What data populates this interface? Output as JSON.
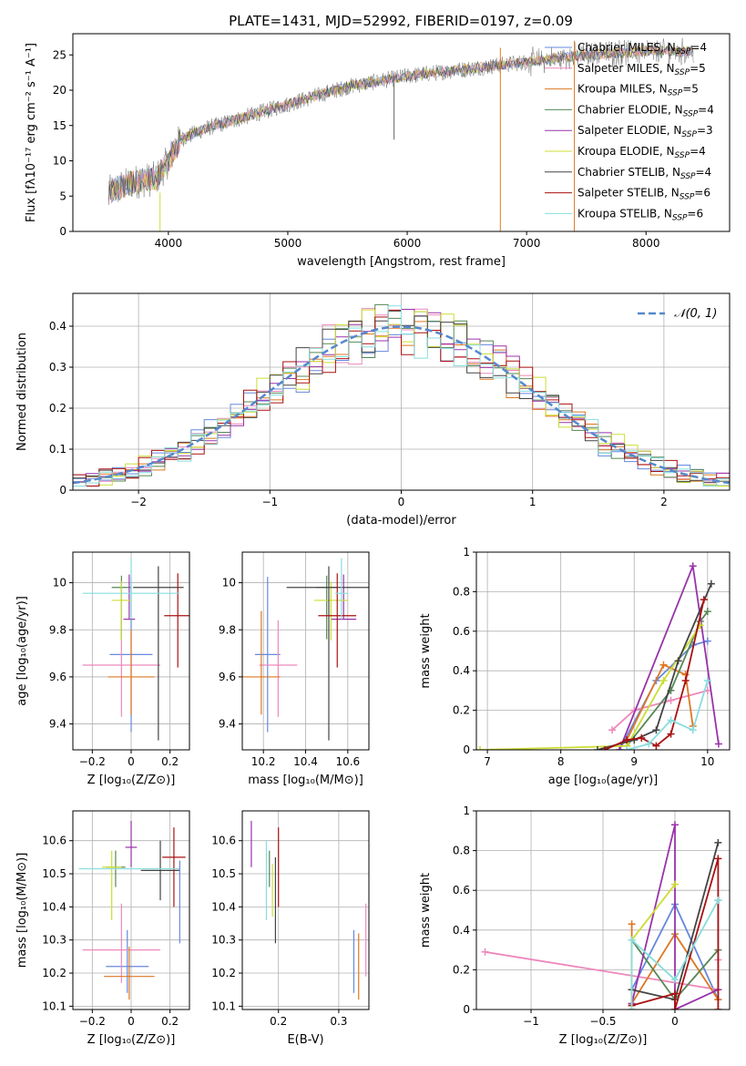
{
  "figure_title": "PLATE=1431, MJD=52992, FIBERID=0197, z=0.09",
  "legend": [
    {
      "label": "Chabrier MILES, N",
      "sub": "SSP",
      "suffix": "=4",
      "color": "#6688dd"
    },
    {
      "label": "Salpeter MILES, N",
      "sub": "SSP",
      "suffix": "=5",
      "color": "#ee88bb"
    },
    {
      "label": "Kroupa MILES, N",
      "sub": "SSP",
      "suffix": "=5",
      "color": "#dd7722"
    },
    {
      "label": "Chabrier ELODIE, N",
      "sub": "SSP",
      "suffix": "=4",
      "color": "#558855"
    },
    {
      "label": "Salpeter ELODIE, N",
      "sub": "SSP",
      "suffix": "=3",
      "color": "#9933aa"
    },
    {
      "label": "Kroupa ELODIE, N",
      "sub": "SSP",
      "suffix": "=4",
      "color": "#ccdd33"
    },
    {
      "label": "Chabrier STELIB, N",
      "sub": "SSP",
      "suffix": "=4",
      "color": "#444444"
    },
    {
      "label": "Salpeter STELIB, N",
      "sub": "SSP",
      "suffix": "=6",
      "color": "#aa1111"
    },
    {
      "label": "Kroupa STELIB, N",
      "sub": "SSP",
      "suffix": "=6",
      "color": "#88dddd"
    }
  ],
  "chart_data": [
    {
      "type": "line",
      "id": "spectrum",
      "xlabel": "wavelength [Angstrom, rest frame]",
      "ylabel": "Flux [fλ10⁻¹⁷ erg cm⁻² s⁻¹ A⁻¹]",
      "xlim": [
        3200,
        8700
      ],
      "ylim": [
        0,
        28
      ],
      "xticks": [
        4000,
        5000,
        6000,
        7000,
        8000
      ],
      "yticks": [
        0,
        5,
        10,
        15,
        20,
        25
      ],
      "continuum": [
        [
          3500,
          5.5
        ],
        [
          3700,
          7
        ],
        [
          3900,
          7.5
        ],
        [
          4000,
          10
        ],
        [
          4100,
          13
        ],
        [
          4300,
          14.5
        ],
        [
          4600,
          16
        ],
        [
          5000,
          18
        ],
        [
          5500,
          20.5
        ],
        [
          6000,
          22
        ],
        [
          6500,
          23
        ],
        [
          7000,
          24
        ],
        [
          7500,
          25
        ],
        [
          8000,
          25.5
        ],
        [
          8400,
          25.5
        ]
      ],
      "spikes": [
        {
          "x": 3930,
          "y0": 0,
          "y1": 5.5
        },
        {
          "x": 6780,
          "y0": 0,
          "y1": 26
        },
        {
          "x": 7400,
          "y0": 0,
          "y1": 27
        }
      ]
    },
    {
      "type": "histogram",
      "id": "residuals",
      "xlabel": "(data-model)/error",
      "ylabel": "Normed distribution",
      "xlim": [
        -2.5,
        2.5
      ],
      "ylim": [
        0,
        0.48
      ],
      "xticks": [
        -2,
        -1,
        0,
        1,
        2
      ],
      "yticks": [
        0.0,
        0.1,
        0.2,
        0.3,
        0.4
      ],
      "bin_width": 0.1,
      "bin_start": -2.5,
      "gaussian_label": "𝒩(0, 1)",
      "gaussian_mean": 0,
      "gaussian_sigma": 1
    },
    {
      "type": "scatter",
      "id": "age-vs-Z",
      "xlabel": "Z [log₁₀(Z/Z⊙)]",
      "ylabel": "age  [log₁₀(age/yr)]",
      "xlim": [
        -0.3,
        0.3
      ],
      "ylim": [
        9.29,
        10.13
      ],
      "xticks": [
        -0.2,
        0.0,
        0.2
      ],
      "yticks": [
        9.4,
        9.6,
        9.8,
        10.0
      ],
      "points": [
        {
          "x": 0.0,
          "y": 9.695,
          "xerr": 0.11,
          "yerr": [
            0.33,
            0.33
          ]
        },
        {
          "x": -0.05,
          "y": 9.65,
          "xerr": 0.2,
          "yerr": [
            0.22,
            0.19
          ]
        },
        {
          "x": 0.0,
          "y": 9.6,
          "xerr": 0.12,
          "yerr": [
            0.16,
            0.2
          ]
        },
        {
          "x": -0.05,
          "y": 9.98,
          "xerr": 0.05,
          "yerr": [
            0.22,
            0.05
          ]
        },
        {
          "x": -0.01,
          "y": 9.845,
          "xerr": 0.03,
          "yerr": [
            0.0,
            0.19
          ]
        },
        {
          "x": -0.05,
          "y": 9.925,
          "xerr": 0.05,
          "yerr": [
            0.17,
            0.08
          ]
        },
        {
          "x": 0.14,
          "y": 9.98,
          "xerr": 0.13,
          "yerr": [
            0.65,
            0.09
          ]
        },
        {
          "x": 0.24,
          "y": 9.86,
          "xerr": 0.07,
          "yerr": [
            0.22,
            0.18
          ]
        },
        {
          "x": 0.0,
          "y": 9.955,
          "xerr": 0.25,
          "yerr": [
            0.11,
            0.15
          ]
        }
      ]
    },
    {
      "type": "scatter",
      "id": "age-vs-mass",
      "xlabel": "mass [log₁₀(M/M⊙)]",
      "ylabel": "",
      "xlim": [
        10.1,
        10.7
      ],
      "ylim": [
        9.29,
        10.13
      ],
      "xticks": [
        10.2,
        10.4,
        10.6
      ],
      "yticks": [
        9.4,
        9.6,
        9.8,
        10.0
      ],
      "points": [
        {
          "x": 10.22,
          "y": 9.695,
          "xerr": 0.06,
          "yerr": [
            0.33,
            0.33
          ]
        },
        {
          "x": 10.27,
          "y": 9.65,
          "xerr": 0.09,
          "yerr": [
            0.22,
            0.19
          ]
        },
        {
          "x": 10.19,
          "y": 9.6,
          "xerr": 0.09,
          "yerr": [
            0.16,
            0.28
          ]
        },
        {
          "x": 10.5,
          "y": 9.98,
          "xerr": 0.05,
          "yerr": [
            0.22,
            0.05
          ]
        },
        {
          "x": 10.58,
          "y": 9.845,
          "xerr": 0.06,
          "yerr": [
            0.0,
            0.19
          ]
        },
        {
          "x": 10.52,
          "y": 9.925,
          "xerr": 0.08,
          "yerr": [
            0.17,
            0.08
          ]
        },
        {
          "x": 10.51,
          "y": 9.98,
          "xerr": 0.2,
          "yerr": [
            0.65,
            0.09
          ]
        },
        {
          "x": 10.55,
          "y": 9.86,
          "xerr": 0.09,
          "yerr": [
            0.22,
            0.18
          ]
        },
        {
          "x": 10.57,
          "y": 9.955,
          "xerr": 0.03,
          "yerr": [
            0.11,
            0.15
          ]
        }
      ]
    },
    {
      "type": "line",
      "id": "mass-weight-vs-age",
      "xlabel": "age  [log₁₀(age/yr)]",
      "ylabel": "mass weight",
      "xlim": [
        6.85,
        10.3
      ],
      "ylim": [
        0,
        1
      ],
      "xticks": [
        7,
        8,
        9,
        10
      ],
      "yticks": [
        0.0,
        0.2,
        0.4,
        0.6,
        0.8,
        1.0
      ],
      "series": [
        {
          "x": [
            8.8,
            9.3,
            9.8,
            10.0
          ],
          "y": [
            0.0,
            0.35,
            0.53,
            0.55
          ]
        },
        {
          "x": [
            8.7,
            9.0,
            9.5,
            10.0
          ],
          "y": [
            0.1,
            0.2,
            0.25,
            0.3
          ]
        },
        {
          "x": [
            8.9,
            9.4,
            9.7,
            9.8
          ],
          "y": [
            0.05,
            0.43,
            0.38,
            0.12
          ]
        },
        {
          "x": [
            8.9,
            9.5,
            9.9,
            10.0
          ],
          "y": [
            0.02,
            0.3,
            0.65,
            0.7
          ]
        },
        {
          "x": [
            8.8,
            9.8,
            10.15
          ],
          "y": [
            0.0,
            0.93,
            0.03
          ]
        },
        {
          "x": [
            6.9,
            8.9,
            9.4,
            9.9
          ],
          "y": [
            0.0,
            0.02,
            0.35,
            0.63
          ]
        },
        {
          "x": [
            8.5,
            9.0,
            9.3,
            9.6,
            10.05
          ],
          "y": [
            0.0,
            0.05,
            0.1,
            0.45,
            0.84
          ]
        },
        {
          "x": [
            8.6,
            8.9,
            9.1,
            9.3,
            9.5,
            9.7,
            9.95
          ],
          "y": [
            0.0,
            0.05,
            0.06,
            0.02,
            0.08,
            0.35,
            0.76
          ]
        },
        {
          "x": [
            8.9,
            9.2,
            9.5,
            9.8,
            10.0
          ],
          "y": [
            0.0,
            0.03,
            0.15,
            0.1,
            0.35
          ]
        }
      ]
    },
    {
      "type": "scatter",
      "id": "mass-vs-Z",
      "xlabel": "Z [log₁₀(Z/Z⊙)]",
      "ylabel": "mass [log₁₀(M/M⊙)]",
      "xlim": [
        -0.3,
        0.3
      ],
      "ylim": [
        10.09,
        10.69
      ],
      "xticks": [
        -0.2,
        0.0,
        0.2
      ],
      "yticks": [
        10.1,
        10.2,
        10.3,
        10.4,
        10.5,
        10.6
      ],
      "points": [
        {
          "x": -0.02,
          "y": 10.22,
          "xerr": 0.11,
          "yerr": [
            0.08,
            0.11
          ]
        },
        {
          "x": -0.05,
          "y": 10.27,
          "xerr": 0.2,
          "yerr": [
            0.1,
            0.14
          ]
        },
        {
          "x": -0.01,
          "y": 10.19,
          "xerr": 0.13,
          "yerr": [
            0.07,
            0.09
          ]
        },
        {
          "x": -0.08,
          "y": 10.52,
          "xerr": 0.05,
          "yerr": [
            0.06,
            0.05
          ]
        },
        {
          "x": 0.0,
          "y": 10.58,
          "xerr": 0.03,
          "yerr": [
            0.06,
            0.08
          ]
        },
        {
          "x": -0.1,
          "y": 10.52,
          "xerr": 0.05,
          "yerr": [
            0.16,
            0.05
          ]
        },
        {
          "x": 0.15,
          "y": 10.51,
          "xerr": 0.1,
          "yerr": [
            0.09,
            0.09
          ]
        },
        {
          "x": 0.22,
          "y": 10.55,
          "xerr": 0.06,
          "yerr": [
            0.15,
            0.09
          ]
        },
        {
          "x": -0.01,
          "y": 10.515,
          "xerr": 0.26,
          "yerr": [
            0.0,
            0.0
          ]
        },
        {
          "x": 0.25,
          "y": 10.5,
          "xerr": 0.0,
          "yerr": [
            0.21,
            0.04
          ]
        }
      ]
    },
    {
      "type": "scatter",
      "id": "mass-vs-EBV",
      "xlabel": "E(B-V)",
      "ylabel": "",
      "xlim": [
        0.14,
        0.35
      ],
      "ylim": [
        10.09,
        10.69
      ],
      "xticks": [
        0.2,
        0.3
      ],
      "yticks": [
        10.1,
        10.2,
        10.3,
        10.4,
        10.5,
        10.6
      ],
      "points": [
        {
          "x": 0.325,
          "y": 10.22,
          "xerr": 0,
          "yerr": [
            0.08,
            0.11
          ]
        },
        {
          "x": 0.345,
          "y": 10.27,
          "xerr": 0,
          "yerr": [
            0.08,
            0.14
          ]
        },
        {
          "x": 0.333,
          "y": 10.19,
          "xerr": 0,
          "yerr": [
            0.07,
            0.13
          ]
        },
        {
          "x": 0.185,
          "y": 10.52,
          "xerr": 0,
          "yerr": [
            0.06,
            0.05
          ]
        },
        {
          "x": 0.155,
          "y": 10.58,
          "xerr": 0,
          "yerr": [
            0.06,
            0.08
          ]
        },
        {
          "x": 0.19,
          "y": 10.47,
          "xerr": 0,
          "yerr": [
            0.1,
            0.06
          ]
        },
        {
          "x": 0.195,
          "y": 10.45,
          "xerr": 0,
          "yerr": [
            0.16,
            0.1
          ]
        },
        {
          "x": 0.2,
          "y": 10.52,
          "xerr": 0,
          "yerr": [
            0.12,
            0.12
          ]
        },
        {
          "x": 0.18,
          "y": 10.5,
          "xerr": 0,
          "yerr": [
            0.14,
            0.1
          ]
        }
      ]
    },
    {
      "type": "line",
      "id": "mass-weight-vs-Z",
      "xlabel": "Z [log₁₀(Z/Z⊙)]",
      "ylabel": "mass weight",
      "xlim": [
        -1.38,
        0.38
      ],
      "ylim": [
        0,
        1
      ],
      "xticks": [
        -1.0,
        -0.5,
        0.0
      ],
      "yticks": [
        0.0,
        0.2,
        0.4,
        0.6,
        0.8,
        1.0
      ],
      "series": [
        {
          "x": [
            -0.3,
            0.0,
            0.3,
            0.3
          ],
          "y": [
            0.1,
            0.53,
            0.05,
            0.55
          ]
        },
        {
          "x": [
            -1.32,
            0.3,
            0.3
          ],
          "y": [
            0.29,
            0.1,
            0.25
          ]
        },
        {
          "x": [
            -0.3,
            -0.3,
            0.0,
            0.3
          ],
          "y": [
            0.43,
            0.03,
            0.38,
            0.05
          ]
        },
        {
          "x": [
            -0.3,
            0.0,
            0.3
          ],
          "y": [
            0.35,
            0.05,
            0.3
          ]
        },
        {
          "x": [
            -0.3,
            0.0,
            0.0,
            0.3
          ],
          "y": [
            0.03,
            0.93,
            0.0,
            0.1
          ]
        },
        {
          "x": [
            -0.3,
            -0.3,
            0.0
          ],
          "y": [
            0.0,
            0.35,
            0.63
          ]
        },
        {
          "x": [
            -0.3,
            0.0,
            0.3
          ],
          "y": [
            0.1,
            0.05,
            0.84
          ]
        },
        {
          "x": [
            -0.3,
            0.0,
            0.0,
            0.3,
            0.3
          ],
          "y": [
            0.02,
            0.08,
            0.0,
            0.76,
            0.0
          ]
        },
        {
          "x": [
            -0.3,
            -0.3,
            0.0,
            0.3
          ],
          "y": [
            0.0,
            0.35,
            0.15,
            0.55
          ]
        }
      ]
    }
  ]
}
